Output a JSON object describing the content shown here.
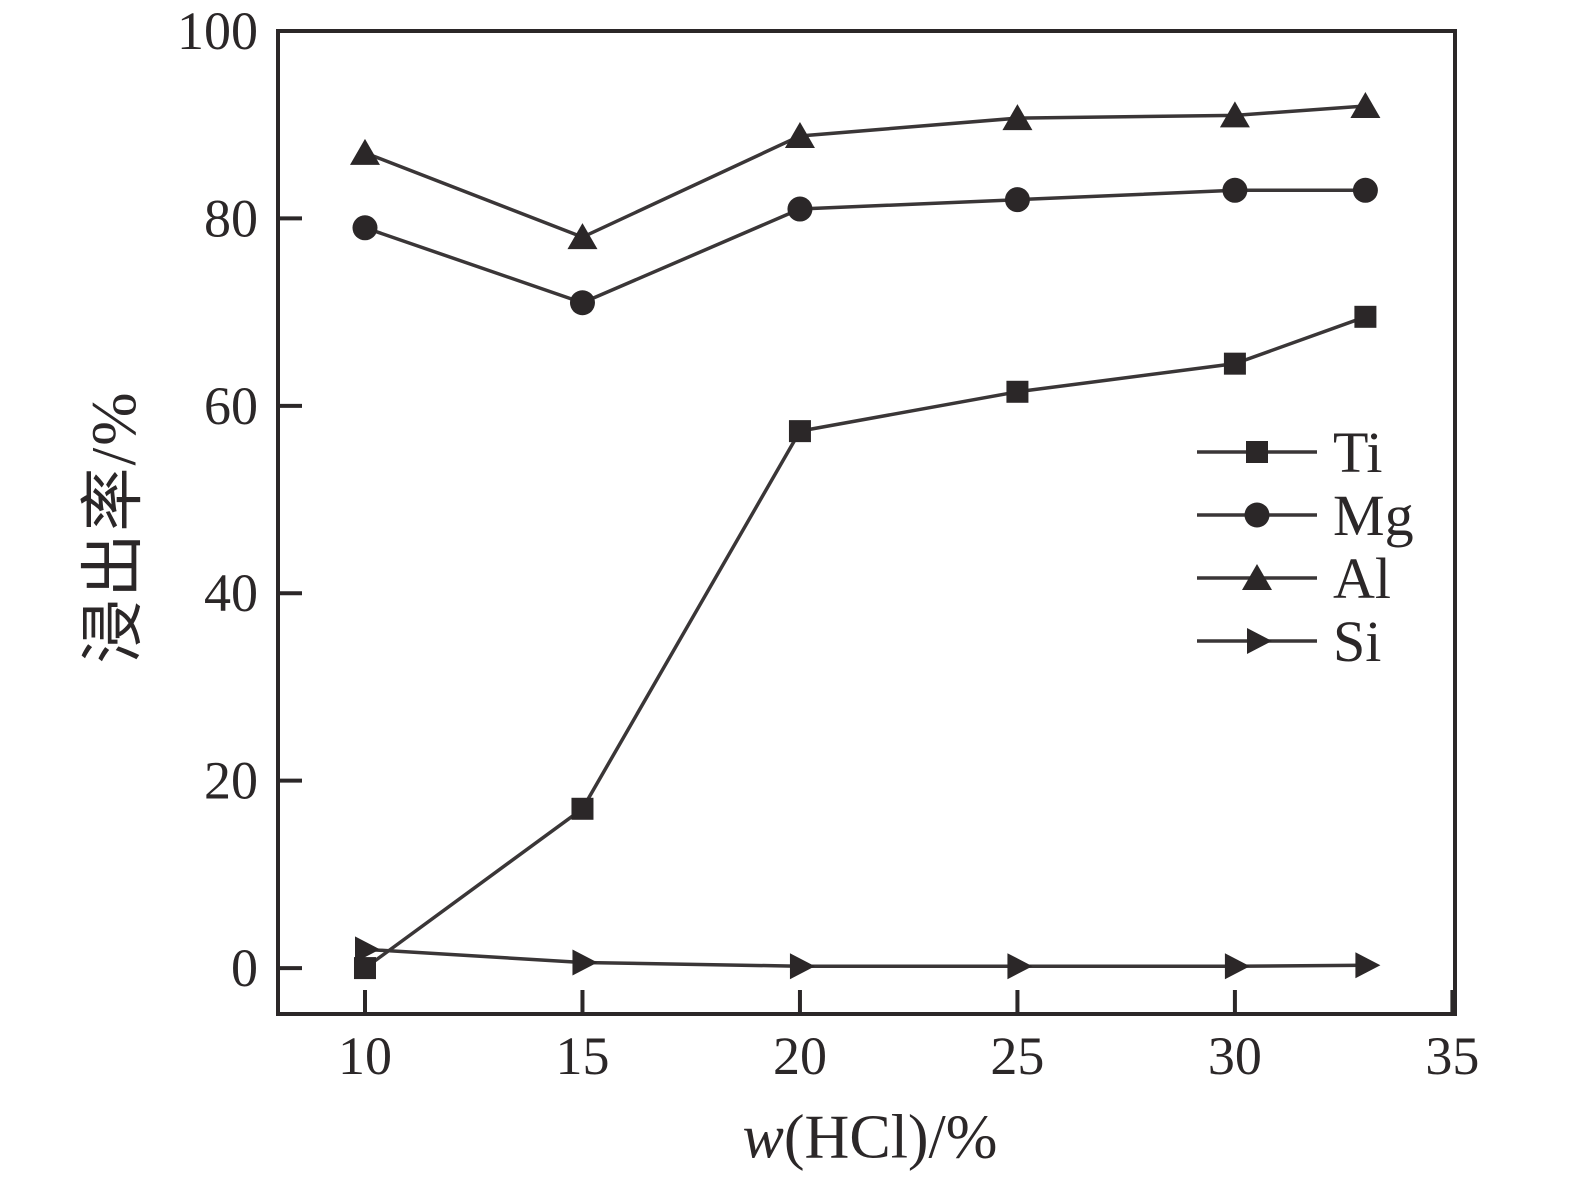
{
  "chart_data": {
    "type": "line",
    "title": "",
    "ylabel": "浸出率/%",
    "xlabel_italic": "w",
    "xlabel_rest": "(HCl)/%",
    "x": [
      10,
      15,
      20,
      25,
      30,
      33
    ],
    "series": [
      {
        "name": "Ti",
        "marker": "square",
        "values": [
          0,
          17,
          57.3,
          61.5,
          64.5,
          69.5
        ]
      },
      {
        "name": "Mg",
        "marker": "circle",
        "values": [
          79,
          71,
          81,
          82,
          83,
          83
        ]
      },
      {
        "name": "Al",
        "marker": "triangle-up",
        "values": [
          87,
          78,
          88.8,
          90.7,
          91,
          92
        ]
      },
      {
        "name": "Si",
        "marker": "triangle-right",
        "values": [
          2,
          0.6,
          0.2,
          0.2,
          0.2,
          0.3
        ]
      }
    ],
    "xticks": [
      10,
      15,
      20,
      25,
      30,
      35
    ],
    "yticks": [
      0,
      20,
      40,
      60,
      80,
      100
    ],
    "xlim": [
      8,
      35.06
    ],
    "ylim": [
      -4.9,
      100
    ],
    "grid": false,
    "legend_position": "middle-right",
    "legend_entries": [
      "Ti",
      "Mg",
      "Al",
      "Si"
    ],
    "ink_color": "#2b2728",
    "line_color": "#3a3637",
    "background_color": "#ffffff"
  }
}
